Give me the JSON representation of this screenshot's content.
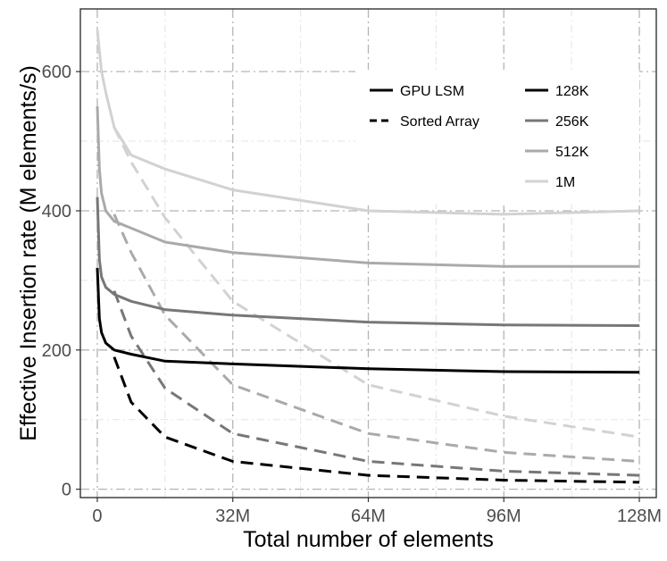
{
  "chart_data": {
    "type": "line",
    "title": "",
    "xlabel": "Total number of elements",
    "ylabel": "Effective Insertion rate (M elements/s)",
    "xlim": [
      -4,
      132
    ],
    "ylim": [
      -12,
      690
    ],
    "x_ticks": [
      0,
      32,
      64,
      96,
      128
    ],
    "x_tick_labels": [
      "0",
      "32M",
      "64M",
      "96M",
      "128M"
    ],
    "y_ticks": [
      0,
      200,
      400,
      600
    ],
    "y_tick_labels": [
      "0",
      "200",
      "400",
      "600"
    ],
    "grid": true,
    "legend": {
      "placement": "top-right",
      "method_entries": [
        {
          "label": "GPU LSM",
          "dash": "solid"
        },
        {
          "label": "Sorted Array",
          "dash": "dashed"
        }
      ],
      "batch_entries": [
        {
          "label": "128K",
          "color": "#000000"
        },
        {
          "label": "256K",
          "color": "#777777"
        },
        {
          "label": "512K",
          "color": "#aaaaaa"
        },
        {
          "label": "1M",
          "color": "#d2d2d2"
        }
      ]
    },
    "series": [
      {
        "name": "GPU LSM 128K",
        "method": "GPU LSM",
        "batch": "128K",
        "color": "#000000",
        "dash": "solid",
        "x": [
          0,
          0.5,
          1,
          2,
          4,
          8,
          16,
          32,
          64,
          96,
          128
        ],
        "y": [
          318,
          245,
          225,
          210,
          200,
          194,
          184,
          180,
          173,
          169,
          168
        ]
      },
      {
        "name": "GPU LSM 256K",
        "method": "GPU LSM",
        "batch": "256K",
        "color": "#777777",
        "dash": "solid",
        "x": [
          0,
          0.5,
          1,
          2,
          4,
          8,
          16,
          32,
          64,
          96,
          128
        ],
        "y": [
          420,
          330,
          305,
          290,
          280,
          270,
          258,
          250,
          240,
          236,
          235
        ]
      },
      {
        "name": "GPU LSM 512K",
        "method": "GPU LSM",
        "batch": "512K",
        "color": "#aaaaaa",
        "dash": "solid",
        "x": [
          0,
          0.5,
          1,
          2,
          4,
          8,
          16,
          32,
          64,
          96,
          128
        ],
        "y": [
          550,
          460,
          425,
          400,
          385,
          375,
          355,
          340,
          325,
          320,
          320
        ]
      },
      {
        "name": "GPU LSM 1M",
        "method": "GPU LSM",
        "batch": "1M",
        "color": "#d2d2d2",
        "dash": "solid",
        "x": [
          0,
          1,
          2,
          4,
          8,
          16,
          32,
          64,
          96,
          128
        ],
        "y": [
          660,
          600,
          570,
          520,
          480,
          460,
          430,
          400,
          395,
          400
        ]
      },
      {
        "name": "Sorted Array 128K",
        "method": "Sorted Array",
        "batch": "128K",
        "color": "#000000",
        "dash": "dashed",
        "x": [
          4,
          8,
          16,
          32,
          64,
          96,
          128
        ],
        "y": [
          190,
          125,
          75,
          40,
          20,
          13,
          10
        ]
      },
      {
        "name": "Sorted Array 256K",
        "method": "Sorted Array",
        "batch": "256K",
        "color": "#777777",
        "dash": "dashed",
        "x": [
          4,
          8,
          16,
          32,
          64,
          96,
          128
        ],
        "y": [
          285,
          220,
          145,
          80,
          40,
          26,
          20
        ]
      },
      {
        "name": "Sorted Array 512K",
        "method": "Sorted Array",
        "batch": "512K",
        "color": "#aaaaaa",
        "dash": "dashed",
        "x": [
          4,
          8,
          16,
          32,
          64,
          96,
          128
        ],
        "y": [
          395,
          340,
          250,
          150,
          80,
          53,
          40
        ]
      },
      {
        "name": "Sorted Array 1M",
        "method": "Sorted Array",
        "batch": "1M",
        "color": "#d2d2d2",
        "dash": "dashed",
        "x": [
          4,
          8,
          16,
          32,
          64,
          96,
          128
        ],
        "y": [
          520,
          470,
          390,
          270,
          150,
          105,
          75
        ]
      }
    ]
  }
}
